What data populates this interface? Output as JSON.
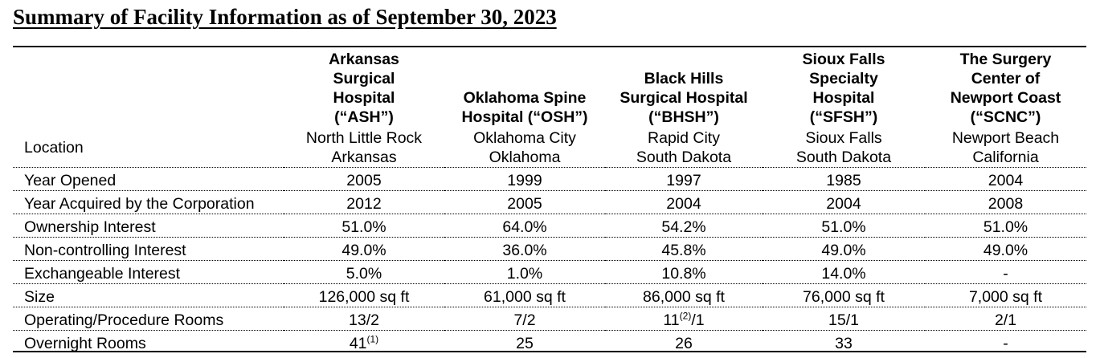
{
  "title": "Summary of Facility Information as of September 30, 2023",
  "columns": [
    {
      "lines": [
        "Arkansas",
        "Surgical",
        "Hospital",
        "(“ASH”)"
      ]
    },
    {
      "lines": [
        "Oklahoma Spine",
        "Hospital (“OSH”)"
      ]
    },
    {
      "lines": [
        "Black Hills",
        "Surgical Hospital",
        "(“BHSH”)"
      ]
    },
    {
      "lines": [
        "Sioux Falls",
        "Specialty",
        "Hospital",
        "(“SFSH”)"
      ]
    },
    {
      "lines": [
        "The Surgery",
        "Center of",
        "Newport Coast",
        "(“SCNC”)"
      ]
    }
  ],
  "location": {
    "label": "Location",
    "values": [
      {
        "city": "North Little Rock",
        "state": "Arkansas"
      },
      {
        "city": "Oklahoma City",
        "state": "Oklahoma"
      },
      {
        "city": "Rapid City",
        "state": "South Dakota"
      },
      {
        "city": "Sioux Falls",
        "state": "South Dakota"
      },
      {
        "city": "Newport Beach",
        "state": "California"
      }
    ]
  },
  "rows": [
    {
      "label": "Year Opened",
      "values": [
        {
          "v": "2005"
        },
        {
          "v": "1999"
        },
        {
          "v": "1997"
        },
        {
          "v": "1985"
        },
        {
          "v": "2004"
        }
      ]
    },
    {
      "label": "Year Acquired by the Corporation",
      "values": [
        {
          "v": "2012"
        },
        {
          "v": "2005"
        },
        {
          "v": "2004"
        },
        {
          "v": "2004"
        },
        {
          "v": "2008"
        }
      ]
    },
    {
      "label": "Ownership Interest",
      "values": [
        {
          "v": "51.0%"
        },
        {
          "v": "64.0%"
        },
        {
          "v": "54.2%"
        },
        {
          "v": "51.0%"
        },
        {
          "v": "51.0%"
        }
      ]
    },
    {
      "label": "Non-controlling Interest",
      "values": [
        {
          "v": "49.0%"
        },
        {
          "v": "36.0%"
        },
        {
          "v": "45.8%"
        },
        {
          "v": "49.0%"
        },
        {
          "v": "49.0%"
        }
      ]
    },
    {
      "label": "Exchangeable Interest",
      "values": [
        {
          "v": "5.0%"
        },
        {
          "v": "1.0%"
        },
        {
          "v": "10.8%"
        },
        {
          "v": "14.0%"
        },
        {
          "v": "-"
        }
      ]
    },
    {
      "label": "Size",
      "values": [
        {
          "v": "126,000 sq ft"
        },
        {
          "v": "61,000 sq ft"
        },
        {
          "v": "86,000 sq ft"
        },
        {
          "v": "76,000 sq ft"
        },
        {
          "v": "7,000 sq ft"
        }
      ]
    },
    {
      "label": "Operating/Procedure Rooms",
      "values": [
        {
          "v": "13/2"
        },
        {
          "v": "7/2"
        },
        {
          "v": "11",
          "sup": "(2)",
          "after": "/1"
        },
        {
          "v": "15/1"
        },
        {
          "v": "2/1"
        }
      ]
    },
    {
      "label": "Overnight Rooms",
      "values": [
        {
          "v": "41",
          "sup": "(1)"
        },
        {
          "v": "25"
        },
        {
          "v": "26"
        },
        {
          "v": "33"
        },
        {
          "v": "-"
        }
      ]
    }
  ]
}
